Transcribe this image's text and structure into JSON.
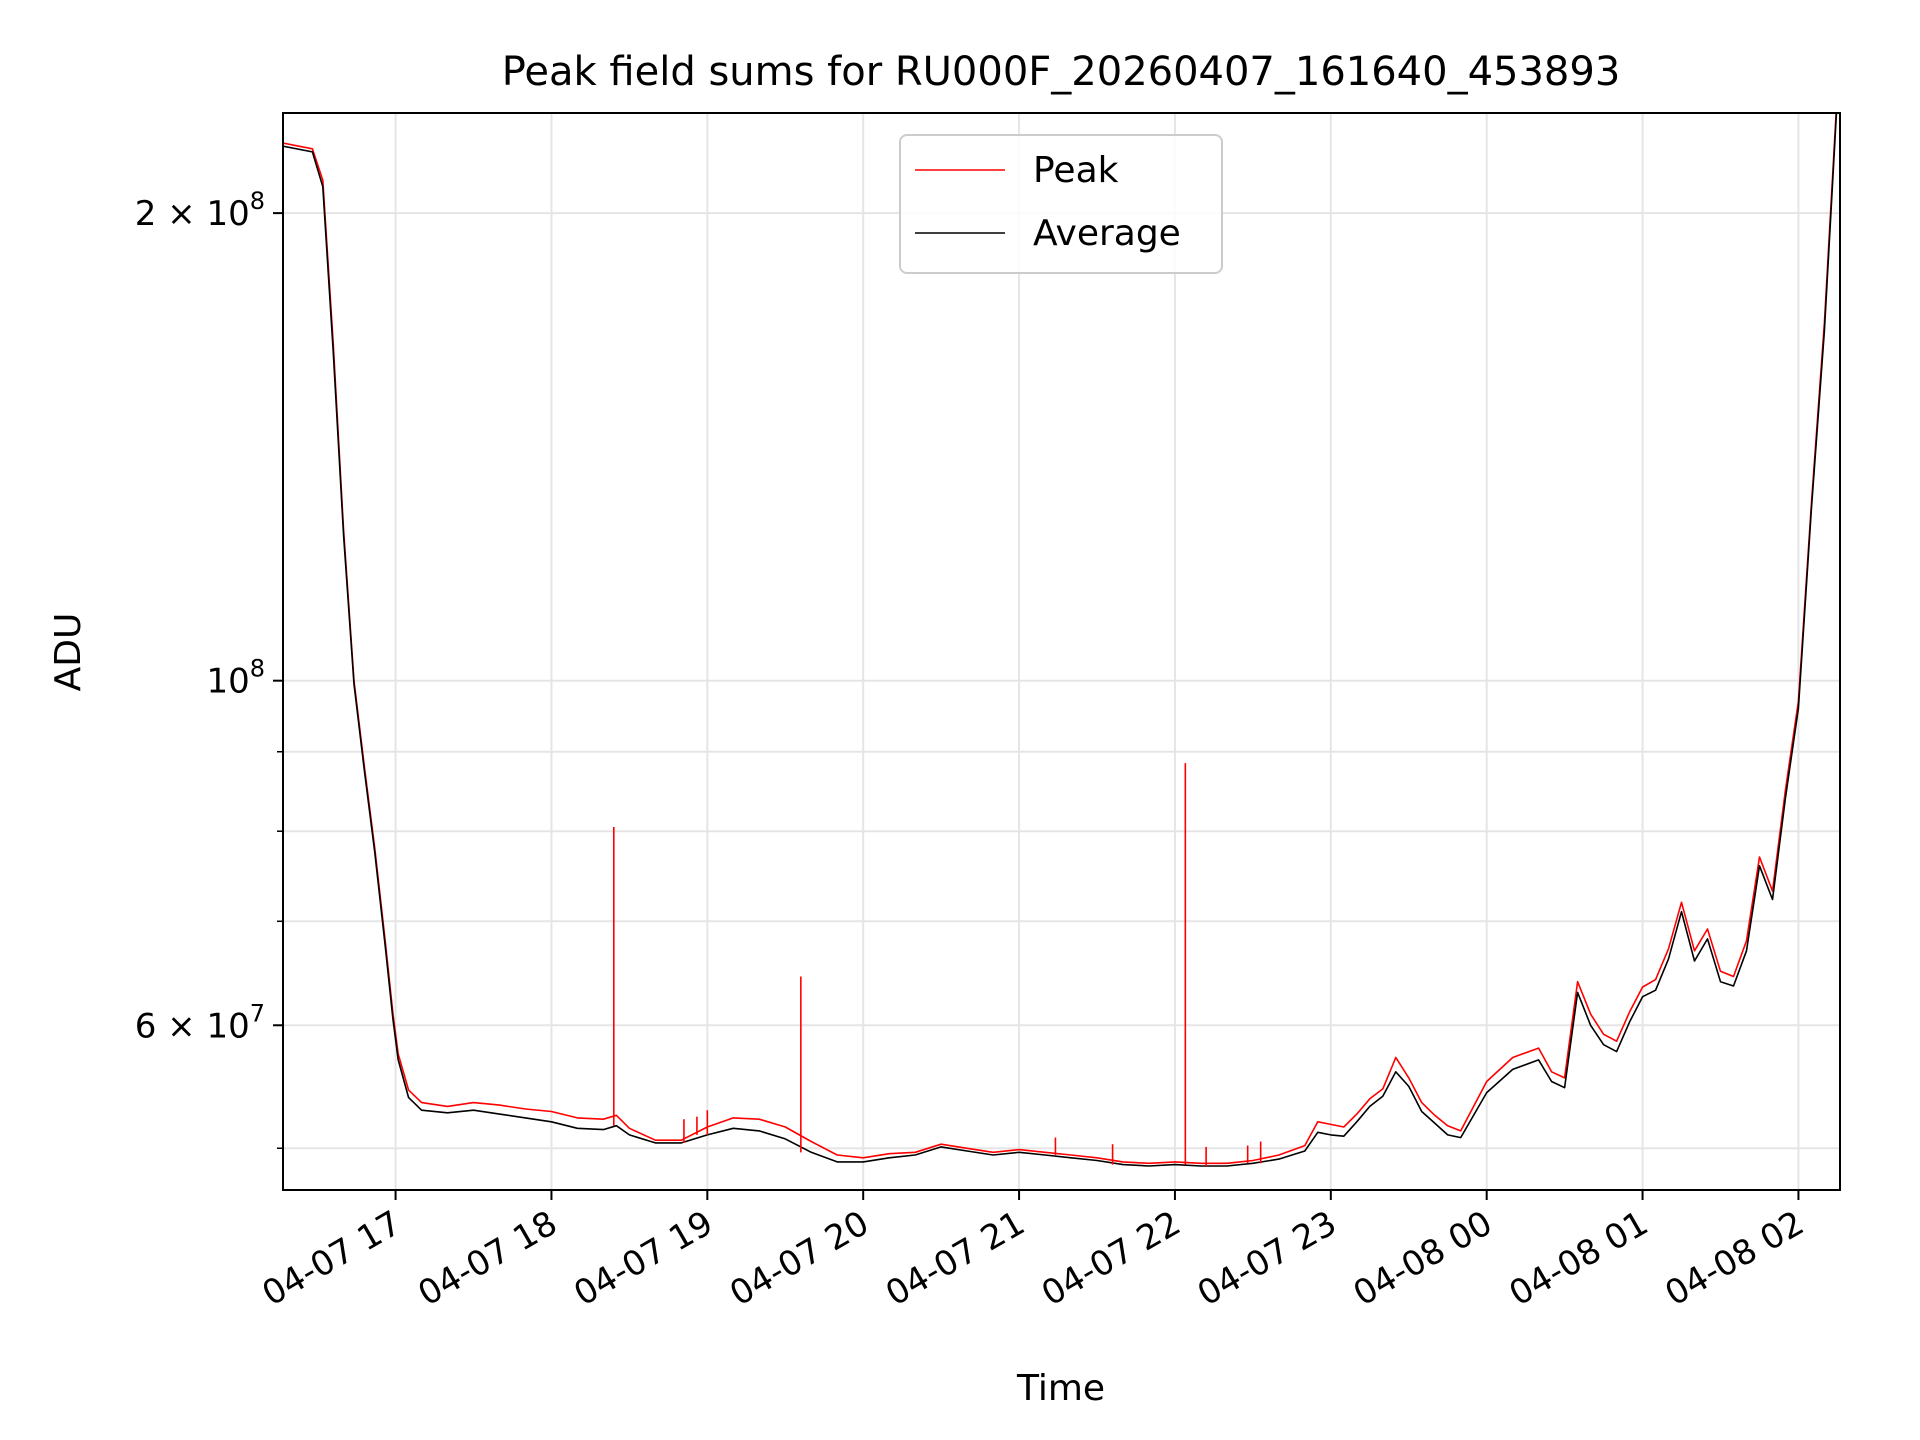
{
  "chart_data": {
    "type": "line",
    "title": "Peak field sums for RU000F_20260407_161640_453893",
    "xlabel": "Time",
    "ylabel": "ADU",
    "y_scale": "log",
    "ylim": [
      47000000,
      232000000
    ],
    "xlim": [
      "2026-04-07 16:16:40",
      "2026-04-08 02:16:00"
    ],
    "x_ticks": [
      {
        "value": "2026-04-07 17:00",
        "label": "04-07 17"
      },
      {
        "value": "2026-04-07 18:00",
        "label": "04-07 18"
      },
      {
        "value": "2026-04-07 19:00",
        "label": "04-07 19"
      },
      {
        "value": "2026-04-07 20:00",
        "label": "04-07 20"
      },
      {
        "value": "2026-04-07 21:00",
        "label": "04-07 21"
      },
      {
        "value": "2026-04-07 22:00",
        "label": "04-07 22"
      },
      {
        "value": "2026-04-07 23:00",
        "label": "04-07 23"
      },
      {
        "value": "2026-04-08 00:00",
        "label": "04-08 00"
      },
      {
        "value": "2026-04-08 01:00",
        "label": "04-08 01"
      },
      {
        "value": "2026-04-08 02:00",
        "label": "04-08 02"
      }
    ],
    "y_ticks_major": [
      {
        "value": 200000000,
        "base": "2 × 10",
        "exp": "8"
      },
      {
        "value": 100000000,
        "base": "10",
        "exp": "8"
      },
      {
        "value": 60000000,
        "base": "6 × 10",
        "exp": "7"
      }
    ],
    "y_minor_ticks": [
      50000000,
      70000000,
      80000000,
      90000000
    ],
    "grid": true,
    "legend": {
      "position": "top-center"
    },
    "series": [
      {
        "name": "Peak",
        "color": "#ff0000",
        "points": [
          [
            "2026-04-07 16:16",
            222000000
          ],
          [
            "2026-04-07 16:28",
            220000000
          ],
          [
            "2026-04-07 16:32",
            210000000
          ],
          [
            "2026-04-07 16:36",
            165000000
          ],
          [
            "2026-04-07 16:40",
            125000000
          ],
          [
            "2026-04-07 16:44",
            100000000
          ],
          [
            "2026-04-07 16:48",
            88000000
          ],
          [
            "2026-04-07 16:52",
            78000000
          ],
          [
            "2026-04-07 16:56",
            68000000
          ],
          [
            "2026-04-07 16:59",
            61000000
          ],
          [
            "2026-04-07 17:01",
            57500000
          ],
          [
            "2026-04-07 17:05",
            54500000
          ],
          [
            "2026-04-07 17:10",
            53500000
          ],
          [
            "2026-04-07 17:20",
            53200000
          ],
          [
            "2026-04-07 17:30",
            53500000
          ],
          [
            "2026-04-07 17:40",
            53300000
          ],
          [
            "2026-04-07 17:50",
            53000000
          ],
          [
            "2026-04-07 18:00",
            52800000
          ],
          [
            "2026-04-07 18:10",
            52300000
          ],
          [
            "2026-04-07 18:20",
            52200000
          ],
          [
            "2026-04-07 18:25",
            52500000
          ],
          [
            "2026-04-07 18:30",
            51500000
          ],
          [
            "2026-04-07 18:40",
            50600000
          ],
          [
            "2026-04-07 18:50",
            50600000
          ],
          [
            "2026-04-07 19:00",
            51600000
          ],
          [
            "2026-04-07 19:10",
            52300000
          ],
          [
            "2026-04-07 19:20",
            52200000
          ],
          [
            "2026-04-07 19:30",
            51600000
          ],
          [
            "2026-04-07 19:40",
            50500000
          ],
          [
            "2026-04-07 19:50",
            49500000
          ],
          [
            "2026-04-07 20:00",
            49300000
          ],
          [
            "2026-04-07 20:10",
            49600000
          ],
          [
            "2026-04-07 20:20",
            49700000
          ],
          [
            "2026-04-07 20:30",
            50300000
          ],
          [
            "2026-04-07 20:40",
            50000000
          ],
          [
            "2026-04-07 20:50",
            49700000
          ],
          [
            "2026-04-07 21:00",
            49900000
          ],
          [
            "2026-04-07 21:10",
            49700000
          ],
          [
            "2026-04-07 21:20",
            49500000
          ],
          [
            "2026-04-07 21:30",
            49300000
          ],
          [
            "2026-04-07 21:40",
            49000000
          ],
          [
            "2026-04-07 21:50",
            48900000
          ],
          [
            "2026-04-07 22:00",
            49000000
          ],
          [
            "2026-04-07 22:10",
            48900000
          ],
          [
            "2026-04-07 22:20",
            48900000
          ],
          [
            "2026-04-07 22:30",
            49100000
          ],
          [
            "2026-04-07 22:40",
            49500000
          ],
          [
            "2026-04-07 22:50",
            50200000
          ],
          [
            "2026-04-07 22:55",
            52000000
          ],
          [
            "2026-04-07 23:00",
            51800000
          ],
          [
            "2026-04-07 23:05",
            51600000
          ],
          [
            "2026-04-07 23:10",
            52600000
          ],
          [
            "2026-04-07 23:15",
            53800000
          ],
          [
            "2026-04-07 23:20",
            54600000
          ],
          [
            "2026-04-07 23:25",
            57200000
          ],
          [
            "2026-04-07 23:30",
            55500000
          ],
          [
            "2026-04-07 23:35",
            53500000
          ],
          [
            "2026-04-07 23:40",
            52500000
          ],
          [
            "2026-04-07 23:45",
            51700000
          ],
          [
            "2026-04-07 23:50",
            51300000
          ],
          [
            "2026-04-08 00:00",
            55200000
          ],
          [
            "2026-04-08 00:10",
            57200000
          ],
          [
            "2026-04-08 00:20",
            58000000
          ],
          [
            "2026-04-08 00:25",
            56000000
          ],
          [
            "2026-04-08 00:30",
            55500000
          ],
          [
            "2026-04-08 00:35",
            64000000
          ],
          [
            "2026-04-08 00:40",
            61000000
          ],
          [
            "2026-04-08 00:45",
            59200000
          ],
          [
            "2026-04-08 00:50",
            58600000
          ],
          [
            "2026-04-08 00:55",
            61200000
          ],
          [
            "2026-04-08 01:00",
            63500000
          ],
          [
            "2026-04-08 01:05",
            64200000
          ],
          [
            "2026-04-08 01:10",
            67200000
          ],
          [
            "2026-04-08 01:15",
            72000000
          ],
          [
            "2026-04-08 01:20",
            67000000
          ],
          [
            "2026-04-08 01:25",
            69200000
          ],
          [
            "2026-04-08 01:30",
            65000000
          ],
          [
            "2026-04-08 01:35",
            64500000
          ],
          [
            "2026-04-08 01:40",
            68000000
          ],
          [
            "2026-04-08 01:45",
            77000000
          ],
          [
            "2026-04-08 01:50",
            73200000
          ],
          [
            "2026-04-08 01:55",
            85000000
          ],
          [
            "2026-04-08 02:00",
            97000000
          ],
          [
            "2026-04-08 02:05",
            130000000
          ],
          [
            "2026-04-08 02:10",
            170000000
          ],
          [
            "2026-04-08 02:15",
            240000000
          ]
        ],
        "spikes": [
          [
            "2026-04-07 18:24",
            80500000
          ],
          [
            "2026-04-07 19:36",
            64500000
          ],
          [
            "2026-04-07 22:04",
            88500000
          ],
          [
            "2026-04-07 21:14",
            50800000
          ],
          [
            "2026-04-07 21:36",
            50300000
          ],
          [
            "2026-04-07 22:12",
            50100000
          ],
          [
            "2026-04-07 18:51",
            52200000
          ],
          [
            "2026-04-07 18:56",
            52400000
          ],
          [
            "2026-04-07 19:00",
            52900000
          ],
          [
            "2026-04-07 22:28",
            50200000
          ],
          [
            "2026-04-07 22:33",
            50500000
          ]
        ]
      },
      {
        "name": "Average",
        "color": "#000000",
        "points": [
          [
            "2026-04-07 16:16",
            221000000
          ],
          [
            "2026-04-07 16:28",
            219000000
          ],
          [
            "2026-04-07 16:32",
            208000000
          ],
          [
            "2026-04-07 16:36",
            163000000
          ],
          [
            "2026-04-07 16:40",
            124000000
          ],
          [
            "2026-04-07 16:44",
            99500000
          ],
          [
            "2026-04-07 16:48",
            87500000
          ],
          [
            "2026-04-07 16:52",
            77500000
          ],
          [
            "2026-04-07 16:56",
            67500000
          ],
          [
            "2026-04-07 16:59",
            60500000
          ],
          [
            "2026-04-07 17:01",
            57000000
          ],
          [
            "2026-04-07 17:05",
            53900000
          ],
          [
            "2026-04-07 17:10",
            52900000
          ],
          [
            "2026-04-07 17:20",
            52700000
          ],
          [
            "2026-04-07 17:30",
            52900000
          ],
          [
            "2026-04-07 17:40",
            52600000
          ],
          [
            "2026-04-07 17:50",
            52300000
          ],
          [
            "2026-04-07 18:00",
            52000000
          ],
          [
            "2026-04-07 18:10",
            51500000
          ],
          [
            "2026-04-07 18:20",
            51400000
          ],
          [
            "2026-04-07 18:25",
            51700000
          ],
          [
            "2026-04-07 18:30",
            51000000
          ],
          [
            "2026-04-07 18:40",
            50400000
          ],
          [
            "2026-04-07 18:50",
            50400000
          ],
          [
            "2026-04-07 19:00",
            51000000
          ],
          [
            "2026-04-07 19:10",
            51500000
          ],
          [
            "2026-04-07 19:20",
            51300000
          ],
          [
            "2026-04-07 19:30",
            50700000
          ],
          [
            "2026-04-07 19:40",
            49700000
          ],
          [
            "2026-04-07 19:50",
            49000000
          ],
          [
            "2026-04-07 20:00",
            49000000
          ],
          [
            "2026-04-07 20:10",
            49300000
          ],
          [
            "2026-04-07 20:20",
            49500000
          ],
          [
            "2026-04-07 20:30",
            50100000
          ],
          [
            "2026-04-07 20:40",
            49800000
          ],
          [
            "2026-04-07 20:50",
            49500000
          ],
          [
            "2026-04-07 21:00",
            49700000
          ],
          [
            "2026-04-07 21:10",
            49500000
          ],
          [
            "2026-04-07 21:20",
            49300000
          ],
          [
            "2026-04-07 21:30",
            49100000
          ],
          [
            "2026-04-07 21:40",
            48800000
          ],
          [
            "2026-04-07 21:50",
            48700000
          ],
          [
            "2026-04-07 22:00",
            48800000
          ],
          [
            "2026-04-07 22:10",
            48700000
          ],
          [
            "2026-04-07 22:20",
            48700000
          ],
          [
            "2026-04-07 22:30",
            48900000
          ],
          [
            "2026-04-07 22:40",
            49200000
          ],
          [
            "2026-04-07 22:50",
            49800000
          ],
          [
            "2026-04-07 22:55",
            51200000
          ],
          [
            "2026-04-07 23:00",
            51000000
          ],
          [
            "2026-04-07 23:05",
            50900000
          ],
          [
            "2026-04-07 23:10",
            52000000
          ],
          [
            "2026-04-07 23:15",
            53200000
          ],
          [
            "2026-04-07 23:20",
            54000000
          ],
          [
            "2026-04-07 23:25",
            56000000
          ],
          [
            "2026-04-07 23:30",
            54800000
          ],
          [
            "2026-04-07 23:35",
            52800000
          ],
          [
            "2026-04-07 23:40",
            51900000
          ],
          [
            "2026-04-07 23:45",
            51000000
          ],
          [
            "2026-04-07 23:50",
            50800000
          ],
          [
            "2026-04-08 00:00",
            54300000
          ],
          [
            "2026-04-08 00:10",
            56200000
          ],
          [
            "2026-04-08 00:20",
            57000000
          ],
          [
            "2026-04-08 00:25",
            55200000
          ],
          [
            "2026-04-08 00:30",
            54700000
          ],
          [
            "2026-04-08 00:35",
            63000000
          ],
          [
            "2026-04-08 00:40",
            60000000
          ],
          [
            "2026-04-08 00:45",
            58300000
          ],
          [
            "2026-04-08 00:50",
            57700000
          ],
          [
            "2026-04-08 00:55",
            60300000
          ],
          [
            "2026-04-08 01:00",
            62600000
          ],
          [
            "2026-04-08 01:05",
            63200000
          ],
          [
            "2026-04-08 01:10",
            66200000
          ],
          [
            "2026-04-08 01:15",
            71000000
          ],
          [
            "2026-04-08 01:20",
            66000000
          ],
          [
            "2026-04-08 01:25",
            68200000
          ],
          [
            "2026-04-08 01:30",
            64000000
          ],
          [
            "2026-04-08 01:35",
            63600000
          ],
          [
            "2026-04-08 01:40",
            67000000
          ],
          [
            "2026-04-08 01:45",
            76000000
          ],
          [
            "2026-04-08 01:50",
            72300000
          ],
          [
            "2026-04-08 01:55",
            84000000
          ],
          [
            "2026-04-08 02:00",
            96000000
          ],
          [
            "2026-04-08 02:05",
            129000000
          ],
          [
            "2026-04-08 02:10",
            168000000
          ],
          [
            "2026-04-08 02:15",
            238000000
          ]
        ]
      }
    ]
  }
}
